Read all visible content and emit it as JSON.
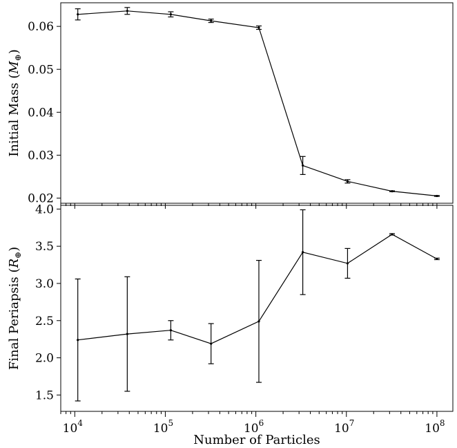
{
  "chart_data": [
    {
      "type": "line",
      "panel": "top",
      "ylabel_main": "Initial Mass (",
      "ylabel_symbol": "M",
      "ylabel_subscript": "⊕",
      "ylabel_close": ")",
      "x_scale": "log",
      "y_scale": "linear",
      "xlim": [
        7000,
        150000000
      ],
      "ylim": [
        0.0188,
        0.0655
      ],
      "yticks": [
        0.02,
        0.03,
        0.04,
        0.05,
        0.06
      ],
      "ytick_labels": [
        "0.02",
        "0.03",
        "0.04",
        "0.05",
        "0.06"
      ],
      "series": [
        {
          "x": [
            10800,
            38000,
            115000,
            320000,
            1080000,
            3300000,
            10300000,
            32000000,
            100000000
          ],
          "y": [
            0.0628,
            0.0636,
            0.0628,
            0.0613,
            0.0597,
            0.0276,
            0.0239,
            0.0216,
            0.0205
          ],
          "err": [
            0.0013,
            0.0008,
            0.0006,
            0.0004,
            0.0004,
            0.0021,
            0.0004,
            0.0001,
            0.0001
          ]
        }
      ]
    },
    {
      "type": "line",
      "panel": "bottom",
      "ylabel_main": "Final Periapsis (",
      "ylabel_symbol": "R",
      "ylabel_subscript": "⊕",
      "ylabel_close": ")",
      "xlabel": "Number of Particles",
      "x_scale": "log",
      "y_scale": "linear",
      "xlim": [
        7000,
        150000000
      ],
      "ylim": [
        1.28,
        4.05
      ],
      "yticks": [
        1.5,
        2.0,
        2.5,
        3.0,
        3.5,
        4.0
      ],
      "ytick_labels": [
        "1.5",
        "2.0",
        "2.5",
        "3.0",
        "3.5",
        "4.0"
      ],
      "xticks": [
        10000,
        100000,
        1000000,
        10000000,
        100000000
      ],
      "xtick_labels": [
        {
          "base": "10",
          "exp": "4"
        },
        {
          "base": "10",
          "exp": "5"
        },
        {
          "base": "10",
          "exp": "6"
        },
        {
          "base": "10",
          "exp": "7"
        },
        {
          "base": "10",
          "exp": "8"
        }
      ],
      "series": [
        {
          "x": [
            10800,
            38000,
            115000,
            320000,
            1080000,
            3300000,
            10300000,
            32000000,
            100000000
          ],
          "y": [
            2.24,
            2.32,
            2.37,
            2.19,
            2.49,
            3.42,
            3.27,
            3.66,
            3.33
          ],
          "err": [
            0.82,
            0.77,
            0.13,
            0.27,
            0.82,
            0.57,
            0.2,
            0.01,
            0.01
          ]
        }
      ]
    }
  ]
}
